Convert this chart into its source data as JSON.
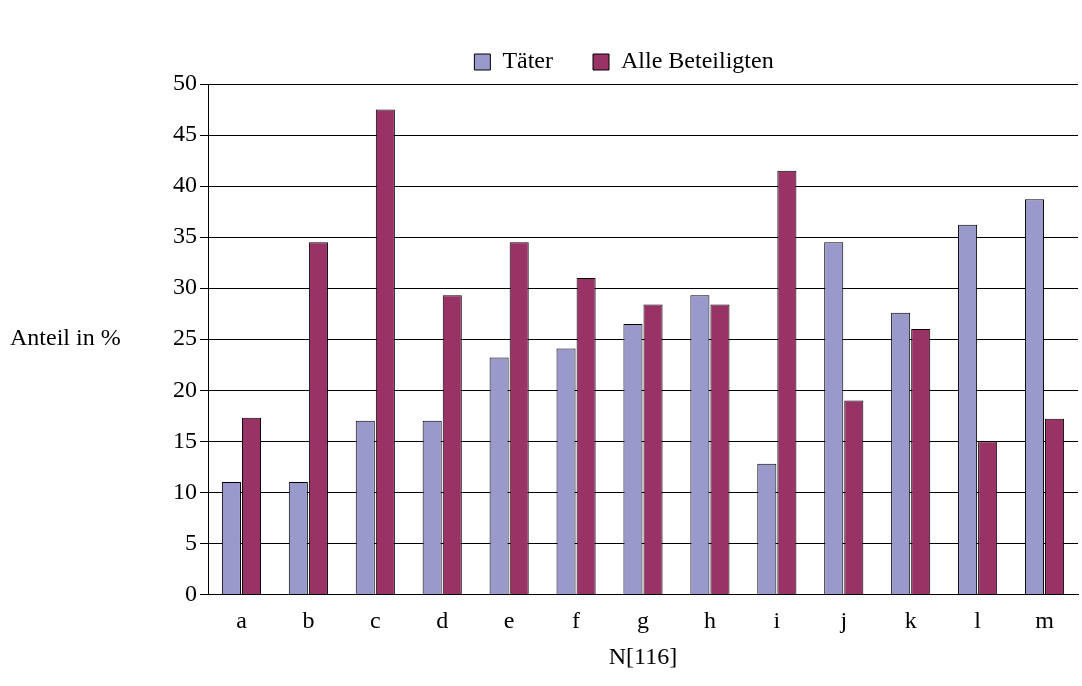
{
  "chart_data": {
    "type": "bar",
    "xlabel": "N[116]",
    "ylabel": "Anteil in %",
    "categories": [
      "a",
      "b",
      "c",
      "d",
      "e",
      "f",
      "g",
      "h",
      "i",
      "j",
      "k",
      "l",
      "m"
    ],
    "series": [
      {
        "name": "Täter",
        "color": "#9999cc",
        "values": [
          11,
          11,
          17,
          17,
          23.2,
          24.1,
          26.5,
          29.3,
          12.8,
          34.5,
          27.6,
          36.2,
          38.7
        ]
      },
      {
        "name": "Alle Beteiligten",
        "color": "#993366",
        "values": [
          17.3,
          34.5,
          47.5,
          29.3,
          34.5,
          31,
          28.4,
          28.4,
          41.5,
          19,
          26,
          15,
          17.2
        ]
      }
    ],
    "ylim": [
      0,
      50
    ],
    "yticks": [
      0,
      5,
      10,
      15,
      20,
      25,
      30,
      35,
      40,
      45,
      50
    ],
    "grid": "y",
    "legend": "top"
  }
}
